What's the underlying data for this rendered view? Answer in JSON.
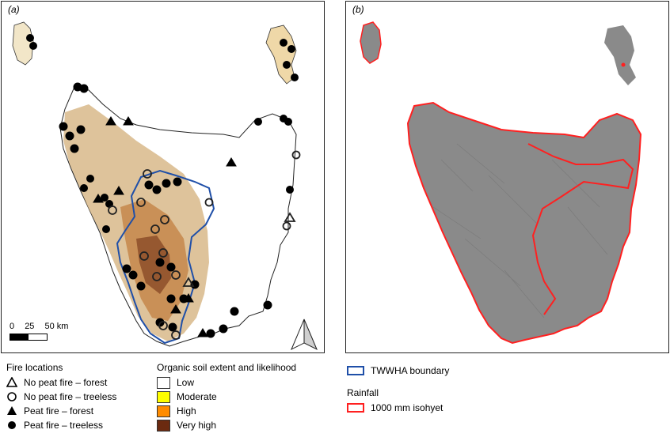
{
  "panels": {
    "a_label": "(a)",
    "b_label": "(b)"
  },
  "scale_bar": {
    "labels": [
      "0",
      "25",
      "50 km"
    ]
  },
  "fire_legend": {
    "title": "Fire locations",
    "items": [
      {
        "label": "No peat fire – forest",
        "symbol": "open-triangle"
      },
      {
        "label": "No peat fire – treeless",
        "symbol": "open-circle"
      },
      {
        "label": "Peat fire – forest",
        "symbol": "filled-triangle"
      },
      {
        "label": "Peat fire – treeless",
        "symbol": "filled-circle"
      }
    ]
  },
  "soil_legend": {
    "title": "Organic soil extent and likelihood",
    "items": [
      {
        "label": "Low",
        "color": "#ffffff"
      },
      {
        "label": "Moderate",
        "color": "#ffff00"
      },
      {
        "label": "High",
        "color": "#ff8c00"
      },
      {
        "label": "Very high",
        "color": "#6b2a10"
      }
    ]
  },
  "boundary_legend": {
    "label": "TWWHA boundary",
    "color": "#1f4fa8"
  },
  "rainfall_legend": {
    "title": "Rainfall",
    "label": "1000 mm isohyet",
    "color": "#ff2020"
  },
  "colors": {
    "terrain": "#8a8a8a",
    "organic_soil_tint": "#d8b98a"
  }
}
